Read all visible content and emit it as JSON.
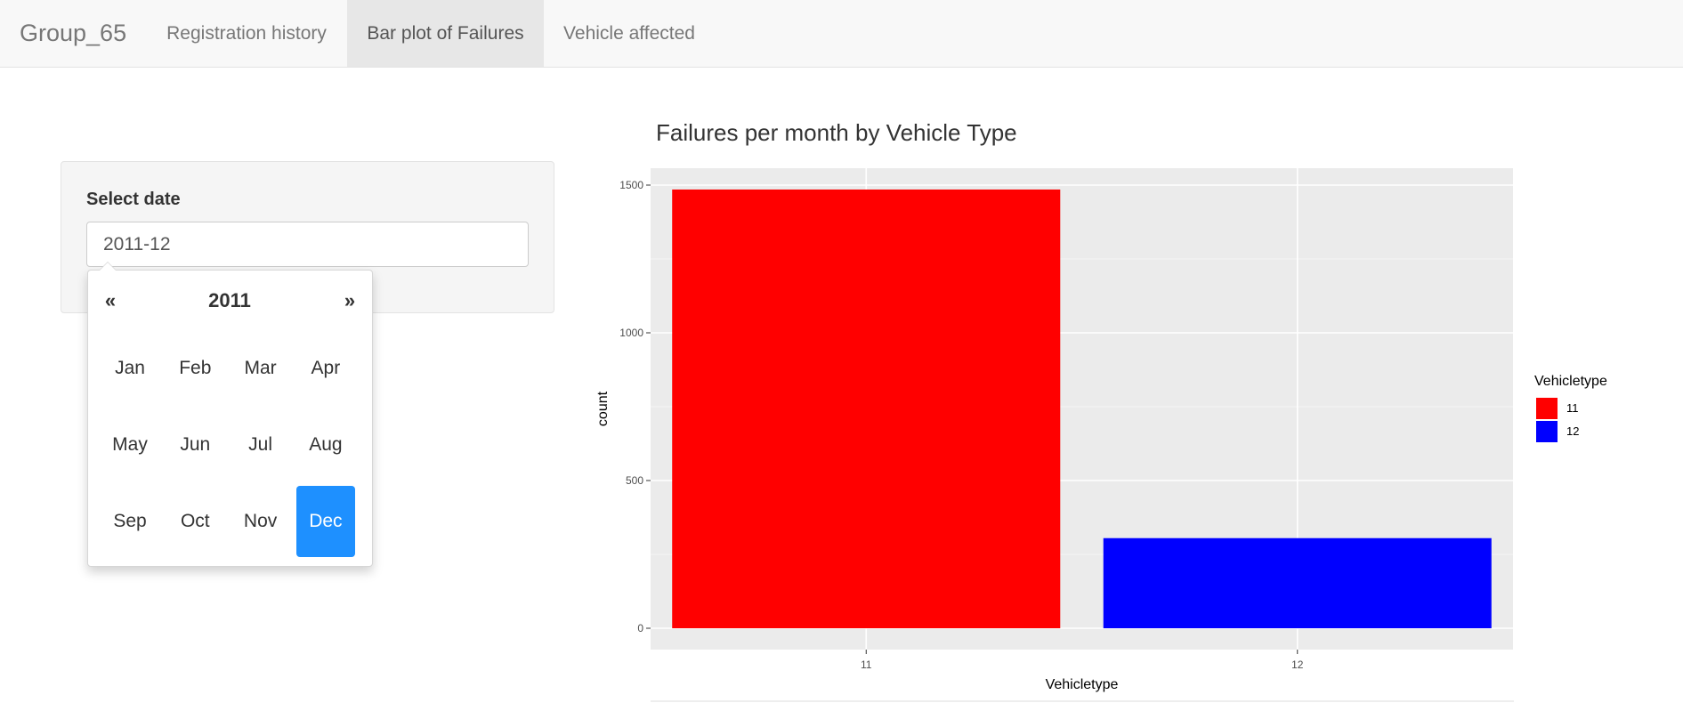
{
  "navbar": {
    "brand": "Group_65",
    "tabs": [
      {
        "label": "Registration history",
        "active": false
      },
      {
        "label": "Bar plot of Failures",
        "active": true
      },
      {
        "label": "Vehicle affected",
        "active": false
      }
    ]
  },
  "sidebar": {
    "label": "Select date",
    "input_value": "2011-12"
  },
  "datepicker": {
    "prev": "«",
    "next": "»",
    "year": "2011",
    "months": [
      "Jan",
      "Feb",
      "Mar",
      "Apr",
      "May",
      "Jun",
      "Jul",
      "Aug",
      "Sep",
      "Oct",
      "Nov",
      "Dec"
    ],
    "selected_month": "Dec",
    "selected_color": "#1e90ff"
  },
  "chart_data": {
    "type": "bar",
    "title": "Failures per month by Vehicle Type",
    "xlabel": "Vehicletype",
    "ylabel": "count",
    "categories": [
      "11",
      "12"
    ],
    "values": [
      1485,
      305
    ],
    "colors": [
      "#ff0000",
      "#0000ff"
    ],
    "ylim": [
      0,
      1500
    ],
    "yticks": [
      0,
      500,
      1000,
      1500
    ],
    "grid": true,
    "panel_background": "#ebebeb",
    "legend": {
      "title": "Vehicletype",
      "placement": "right",
      "items": [
        {
          "label": "11",
          "color": "#ff0000"
        },
        {
          "label": "12",
          "color": "#0000ff"
        }
      ]
    }
  }
}
